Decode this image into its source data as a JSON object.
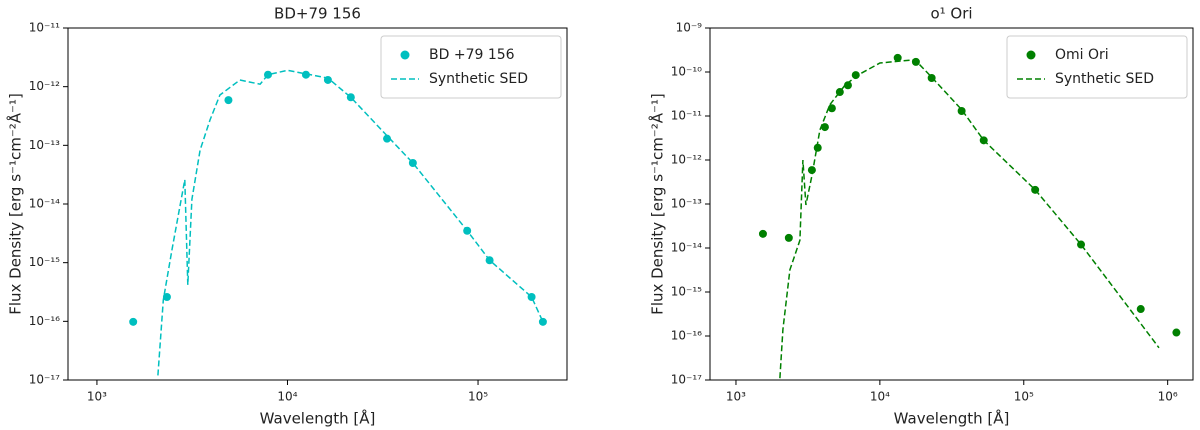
{
  "chart_data": [
    {
      "type": "scatter",
      "title": "BD+79 156",
      "x_label": "Wavelength [Å]",
      "y_label": "Flux Density [erg s⁻¹cm⁻²Å⁻¹]",
      "log_x": true,
      "log_y": true,
      "legend": "upper right",
      "xlim": [
        705,
        293000
      ],
      "ylim": [
        1e-17,
        1e-11
      ],
      "xticks": [
        {
          "value": 1000,
          "label": "10³"
        },
        {
          "value": 10000,
          "label": "10⁴"
        },
        {
          "value": 100000,
          "label": "10⁵"
        }
      ],
      "yticks": [
        {
          "value": 1e-17,
          "label": "10⁻¹⁷"
        },
        {
          "value": 1e-16,
          "label": "10⁻¹⁶"
        },
        {
          "value": 1e-15,
          "label": "10⁻¹⁵"
        },
        {
          "value": 1e-14,
          "label": "10⁻¹⁴"
        },
        {
          "value": 1e-13,
          "label": "10⁻¹³"
        },
        {
          "value": 1e-12,
          "label": "10⁻¹²"
        },
        {
          "value": 1e-11,
          "label": "10⁻¹¹"
        }
      ],
      "series": [
        {
          "name": "BD +79 156",
          "color": "#00bfbf",
          "style": "marker",
          "x": [
            1550,
            2330,
            4900,
            7900,
            12500,
            16300,
            21500,
            33300,
            45500,
            87700,
            115000,
            191000,
            219000
          ],
          "values": [
            9.8e-17,
            2.6e-16,
            5.9e-13,
            1.6e-12,
            1.6e-12,
            1.3e-12,
            6.6e-13,
            1.3e-13,
            5e-14,
            3.5e-15,
            1.1e-15,
            2.6e-16,
            9.8e-17
          ]
        },
        {
          "name": "Synthetic SED",
          "color": "#00bfbf",
          "style": "dashed",
          "x": [
            2090,
            2230,
            2470,
            2890,
            3000,
            3150,
            3480,
            3920,
            4420,
            5630,
            7180,
            7900,
            10000,
            16300,
            21500,
            33000,
            45500,
            87700,
            115000,
            191000,
            219000
          ],
          "values": [
            1.2e-17,
            2.3e-16,
            1.6e-15,
            2.6e-14,
            4.2e-16,
            1.2e-14,
            8.3e-14,
            2.7e-13,
            7.2e-13,
            1.3e-12,
            1.1e-12,
            1.6e-12,
            1.9e-12,
            1.4e-12,
            6.6e-13,
            1.5e-13,
            5e-14,
            3.5e-15,
            1.1e-15,
            2.6e-16,
            9.8e-17
          ]
        }
      ]
    },
    {
      "type": "scatter",
      "title": "o¹ Ori",
      "x_label": "Wavelength [Å]",
      "y_label": "Flux Density [erg s⁻¹cm⁻²Å⁻¹]",
      "log_x": true,
      "log_y": true,
      "legend": "upper right",
      "xlim": [
        660,
        1500000
      ],
      "ylim": [
        1e-17,
        1e-09
      ],
      "xticks": [
        {
          "value": 1000,
          "label": "10³"
        },
        {
          "value": 10000,
          "label": "10⁴"
        },
        {
          "value": 100000,
          "label": "10⁵"
        },
        {
          "value": 1000000,
          "label": "10⁶"
        }
      ],
      "yticks": [
        {
          "value": 1e-17,
          "label": "10⁻¹⁷"
        },
        {
          "value": 1e-16,
          "label": "10⁻¹⁶"
        },
        {
          "value": 1e-15,
          "label": "10⁻¹⁵"
        },
        {
          "value": 1e-14,
          "label": "10⁻¹⁴"
        },
        {
          "value": 1e-13,
          "label": "10⁻¹³"
        },
        {
          "value": 1e-12,
          "label": "10⁻¹²"
        },
        {
          "value": 1e-11,
          "label": "10⁻¹¹"
        },
        {
          "value": 1e-10,
          "label": "10⁻¹⁰"
        },
        {
          "value": 1e-09,
          "label": "10⁻⁹"
        }
      ],
      "series": [
        {
          "name": "Omi Ori",
          "color": "#008000",
          "style": "marker",
          "x": [
            1540,
            2330,
            3370,
            3700,
            4150,
            4640,
            5270,
            6000,
            6800,
            13300,
            17800,
            22900,
            37000,
            52700,
            120000,
            250000,
            650000,
            1150000
          ],
          "values": [
            2.1e-14,
            1.7e-14,
            5.9e-13,
            1.9e-12,
            5.6e-12,
            1.5e-11,
            3.5e-11,
            5e-11,
            8.5e-11,
            2.1e-10,
            1.7e-10,
            7.3e-11,
            1.3e-11,
            2.8e-12,
            2.1e-13,
            1.2e-14,
            4.1e-16,
            1.2e-16
          ]
        },
        {
          "name": "Synthetic SED",
          "color": "#008000",
          "style": "dashed",
          "x": [
            2020,
            2120,
            2370,
            2780,
            2920,
            3060,
            3380,
            3830,
            4490,
            5720,
            7040,
            10000,
            17500,
            22200,
            37000,
            52700,
            120000,
            250000,
            870000
          ],
          "values": [
            1.1e-17,
            1.4e-16,
            3.2e-15,
            1.5e-14,
            1e-12,
            9.5e-14,
            4.6e-13,
            4.8e-12,
            1.8e-11,
            5e-11,
            8.5e-11,
            1.6e-10,
            1.9e-10,
            8.5e-11,
            1.4e-11,
            2.8e-12,
            2.1e-13,
            1.2e-14,
            5.4e-17
          ]
        }
      ]
    }
  ]
}
